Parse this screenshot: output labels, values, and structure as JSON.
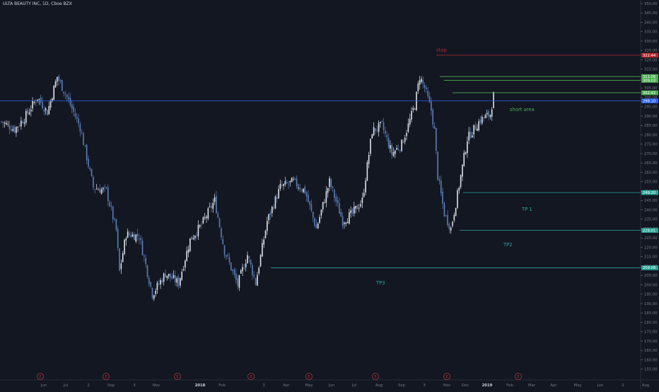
{
  "header": {
    "symbol": "ULTA BEAUTY INC, 1D, Cboe BZX"
  },
  "chart_data": {
    "type": "candlestick",
    "colors": {
      "background": "#131722",
      "candle": "#e0e3eb",
      "candle_down": "#5b7fb8",
      "axis_text": "#787b86",
      "stop": "#b7272a",
      "tp": "#26a69a",
      "green": "#4caf50",
      "blue": "#2962ff",
      "earnings": "#a83232"
    },
    "y_axis": {
      "min": 150,
      "max": 350,
      "ticks": [
        "350.00",
        "345.00",
        "340.00",
        "335.00",
        "330.00",
        "325.00",
        "320.00",
        "315.00",
        "310.00",
        "305.00",
        "300.00",
        "295.00",
        "290.00",
        "285.00",
        "280.00",
        "275.00",
        "270.00",
        "265.00",
        "260.00",
        "255.00",
        "250.00",
        "245.00",
        "240.00",
        "235.00",
        "230.00",
        "225.00",
        "220.00",
        "215.00",
        "210.00",
        "205.00",
        "200.00",
        "195.00",
        "190.00",
        "185.00",
        "180.00",
        "175.00",
        "170.00",
        "165.00",
        "160.00",
        "155.00"
      ]
    },
    "x_axis": {
      "labels": [
        "Jun",
        "Jul",
        "2",
        "Sep",
        "3",
        "Nov",
        "2018",
        "Feb",
        "3",
        "Apr",
        "May",
        "Jun",
        "Jul",
        "Aug",
        "Sep",
        "3",
        "Nov",
        "Dec",
        "2019",
        "Feb",
        "Mar",
        "Apr",
        "May",
        "Jun",
        "2",
        "Aug"
      ],
      "bold": [
        "2018",
        "2019"
      ]
    },
    "earnings_marker": "E",
    "anchors": [
      {
        "t": 0,
        "p": 287
      },
      {
        "t": 8,
        "p": 283
      },
      {
        "t": 14,
        "p": 289
      },
      {
        "t": 22,
        "p": 300
      },
      {
        "t": 28,
        "p": 292
      },
      {
        "t": 34,
        "p": 311
      },
      {
        "t": 40,
        "p": 300
      },
      {
        "t": 48,
        "p": 284
      },
      {
        "t": 56,
        "p": 252
      },
      {
        "t": 64,
        "p": 250
      },
      {
        "t": 70,
        "p": 229
      },
      {
        "t": 72,
        "p": 207
      },
      {
        "t": 76,
        "p": 227
      },
      {
        "t": 84,
        "p": 226
      },
      {
        "t": 92,
        "p": 195
      },
      {
        "t": 100,
        "p": 206
      },
      {
        "t": 108,
        "p": 201
      },
      {
        "t": 115,
        "p": 224
      },
      {
        "t": 122,
        "p": 232
      },
      {
        "t": 130,
        "p": 245
      },
      {
        "t": 136,
        "p": 218
      },
      {
        "t": 144,
        "p": 200
      },
      {
        "t": 150,
        "p": 216
      },
      {
        "t": 155,
        "p": 201
      },
      {
        "t": 162,
        "p": 234
      },
      {
        "t": 170,
        "p": 252
      },
      {
        "t": 178,
        "p": 255
      },
      {
        "t": 185,
        "p": 250
      },
      {
        "t": 192,
        "p": 230
      },
      {
        "t": 200,
        "p": 255
      },
      {
        "t": 208,
        "p": 234
      },
      {
        "t": 214,
        "p": 238
      },
      {
        "t": 220,
        "p": 245
      },
      {
        "t": 226,
        "p": 282
      },
      {
        "t": 232,
        "p": 285
      },
      {
        "t": 238,
        "p": 270
      },
      {
        "t": 244,
        "p": 275
      },
      {
        "t": 248,
        "p": 285
      },
      {
        "t": 252,
        "p": 296
      },
      {
        "t": 255,
        "p": 311
      },
      {
        "t": 258,
        "p": 305
      },
      {
        "t": 262,
        "p": 293
      },
      {
        "t": 264,
        "p": 282
      },
      {
        "t": 266,
        "p": 258
      },
      {
        "t": 270,
        "p": 238
      },
      {
        "t": 274,
        "p": 230
      },
      {
        "t": 278,
        "p": 248
      },
      {
        "t": 284,
        "p": 278
      },
      {
        "t": 292,
        "p": 288
      },
      {
        "t": 298,
        "p": 291
      },
      {
        "t": 300,
        "p": 301
      }
    ],
    "levels": [
      {
        "name": "stop",
        "price": 322.44,
        "label": "322.44",
        "color": "#b7272a"
      },
      {
        "name": "entry-1",
        "price": 311.06,
        "label": "311.06",
        "color": "#4caf50"
      },
      {
        "name": "entry-2",
        "price": 309.03,
        "label": "309.03",
        "color": "#4caf50"
      },
      {
        "name": "entry-3",
        "price": 302.42,
        "label": "302.42",
        "color": "#4caf50"
      },
      {
        "name": "last",
        "price": 298.1,
        "label": "298.10",
        "color": "#2962ff"
      },
      {
        "name": "tp1",
        "price": 249.2,
        "label": "249.20",
        "color": "#26a69a"
      },
      {
        "name": "tp2",
        "price": 229.01,
        "label": "229.01",
        "color": "#26a69a"
      },
      {
        "name": "tp3",
        "price": 209.08,
        "label": "209.08",
        "color": "#26a69a"
      }
    ],
    "annotations": [
      {
        "text": "stop",
        "color": "#b7272a"
      },
      {
        "text": "short area",
        "color": "#4caf50"
      },
      {
        "text": "TP 1",
        "color": "#26a69a"
      },
      {
        "text": "TP2",
        "color": "#26a69a"
      },
      {
        "text": "TP3",
        "color": "#26a69a"
      }
    ]
  }
}
